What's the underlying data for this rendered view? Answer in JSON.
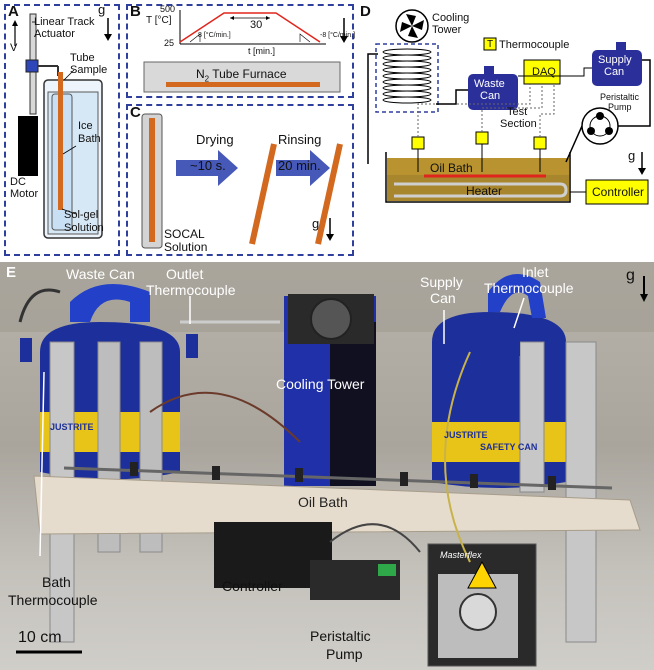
{
  "panel_a": {
    "label": "A",
    "actuator": "Linear Track Actuator",
    "v": "V",
    "g": "g",
    "tube_sample": "Tube Sample",
    "motor_l1": "DC",
    "motor_l2": "Motor",
    "ice_l1": "Ice",
    "ice_l2": "Bath",
    "solgel_l1": "Sol-gel",
    "solgel_l2": "Solution"
  },
  "panel_b": {
    "label": "B",
    "g": "g",
    "y_axis": "T [°C]",
    "y_top": "500",
    "y_bottom": "25",
    "x_axis": "t [min.]",
    "hold": "30",
    "ramp_up": "8 [°C/min.]",
    "ramp_down": "-8 [°C/min.]",
    "furnace_prefix": "N",
    "furnace_sub": "2",
    "furnace_suffix": " Tube Furnace"
  },
  "panel_c": {
    "label": "C",
    "drying": "Drying",
    "drying_time": "~10 s.",
    "rinsing": "Rinsing",
    "rinsing_time": "20 min.",
    "socal_l1": "SOCAL",
    "socal_l2": "Solution",
    "g": "g"
  },
  "panel_d": {
    "label": "D",
    "cooling_l1": "Cooling",
    "cooling_l2": "Tower",
    "thermo_symbol": "T",
    "thermo_legend": "Thermocouple",
    "waste_l1": "Waste",
    "waste_l2": "Can",
    "supply_l1": "Supply",
    "supply_l2": "Can",
    "peristaltic_l1": "Peristaltic",
    "peristaltic_l2": "Pump",
    "daq": "DAQ",
    "test_l1": "Test",
    "test_l2": "Section",
    "oil_bath": "Oil Bath",
    "heater": "Heater",
    "controller": "Controller",
    "g": "g"
  },
  "panel_e": {
    "label": "E",
    "waste_can": "Waste Can",
    "outlet_l1": "Outlet",
    "outlet_l2": "Thermocouple",
    "supply_l1": "Supply",
    "supply_l2": "Can",
    "inlet_l1": "Inlet",
    "inlet_l2": "Thermocouple",
    "cooling_tower": "Cooling Tower",
    "oil_bath": "Oil Bath",
    "bath_l1": "Bath",
    "bath_l2": "Thermocouple",
    "controller": "Controller",
    "peristaltic_l1": "Peristaltic",
    "peristaltic_l2": "Pump",
    "scale": "10 cm",
    "g": "g",
    "can_text_l1": "JUSTRITE",
    "can_text_l2": "SAFETY CAN",
    "pump_brand": "Masterflex"
  },
  "colors": {
    "panel_border": "#2f3f9e",
    "tube_orange": "#d2691e",
    "arrow_blue": "#4658b8",
    "oil": "#a7862e",
    "heater_red": "#e0261c",
    "thermo_yellow": "#ffff00",
    "can_blue": "#2b2f9a",
    "profile_red": "#e0261c"
  }
}
